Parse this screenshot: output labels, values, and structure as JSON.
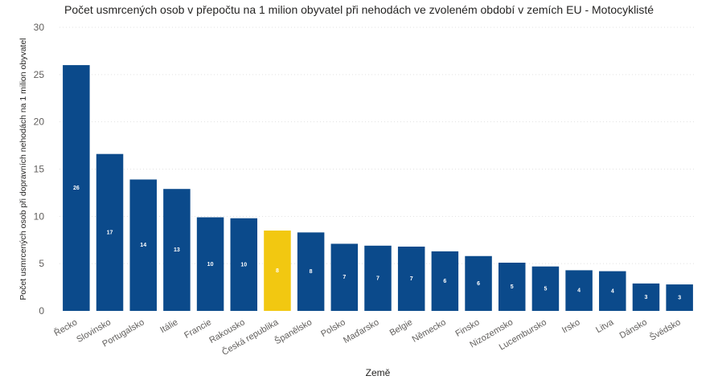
{
  "chart_data": {
    "type": "bar",
    "title": "Počet usmrcených osob v přepočtu na 1 milion obyvatel při nehodách ve zvoleném období v zemích EU - Motocyklisté",
    "xlabel": "Země",
    "ylabel": "Počet usmrcených osob při dopravních nehodách na 1 milion obyvatel",
    "ylim": [
      0,
      30
    ],
    "yticks": [
      0,
      5,
      10,
      15,
      20,
      25,
      30
    ],
    "grid": true,
    "categories": [
      "Řecko",
      "Slovinsko",
      "Portugalsko",
      "Itálie",
      "Francie",
      "Rakousko",
      "Česká republika",
      "Španělsko",
      "Polsko",
      "Maďarsko",
      "Belgie",
      "Německo",
      "Finsko",
      "Nizozemsko",
      "Lucembursko",
      "Irsko",
      "Litva",
      "Dánsko",
      "Švédsko"
    ],
    "values": [
      26,
      16.6,
      13.9,
      12.9,
      9.9,
      9.8,
      8.5,
      8.3,
      7.1,
      6.9,
      6.8,
      6.3,
      5.8,
      5.1,
      4.7,
      4.3,
      4.2,
      2.9,
      2.8
    ],
    "data_labels": [
      "26",
      "17",
      "14",
      "13",
      "10",
      "10",
      "8",
      "8",
      "7",
      "7",
      "7",
      "6",
      "6",
      "5",
      "5",
      "4",
      "4",
      "3",
      "3"
    ],
    "bar_color": "#0B4A8B",
    "highlight_color": "#F2C811",
    "highlight_category": "Česká republika"
  }
}
